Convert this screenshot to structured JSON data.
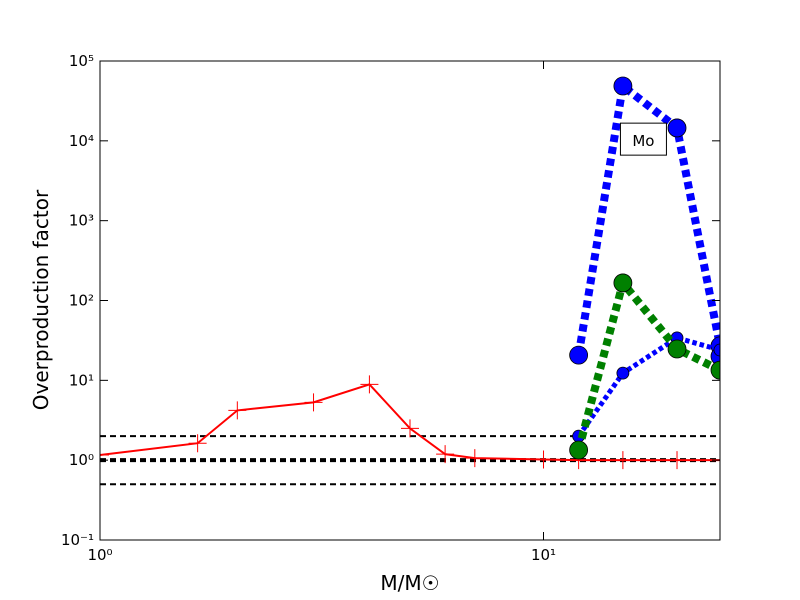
{
  "chart_data": {
    "type": "line",
    "xlabel": "M/M☉",
    "ylabel": "Overproduction factor",
    "xscale": "log",
    "yscale": "log",
    "xlim": [
      1,
      25
    ],
    "ylim": [
      0.1,
      100000
    ],
    "xticks": [
      {
        "value": 1,
        "label": "10⁰"
      },
      {
        "value": 10,
        "label": "10¹"
      }
    ],
    "yticks": [
      {
        "value": 0.1,
        "label": "10⁻¹"
      },
      {
        "value": 1,
        "label": "10⁰"
      },
      {
        "value": 10,
        "label": "10¹"
      },
      {
        "value": 100,
        "label": "10²"
      },
      {
        "value": 1000,
        "label": "10³"
      },
      {
        "value": 10000,
        "label": "10⁴"
      },
      {
        "value": 100000,
        "label": "10⁵"
      }
    ],
    "hlines": [
      {
        "value": 2,
        "width": 2
      },
      {
        "value": 1,
        "width": 4
      },
      {
        "value": 0.5,
        "width": 2
      }
    ],
    "annotation": {
      "text": "Mo",
      "x": 16.8,
      "y": 10500
    },
    "series": [
      {
        "color": "#ff0000",
        "linestyle": "solid",
        "width": 2,
        "marker": "plus",
        "markersize": 9,
        "x": [
          1,
          1.66,
          2.04,
          3.03,
          4.05,
          5.0,
          6.0,
          7.0,
          10,
          12,
          15.1,
          20,
          25
        ],
        "values": [
          1.16,
          1.63,
          4.2,
          5.3,
          8.9,
          2.5,
          1.19,
          1.06,
          1.02,
          1.0,
          1.0,
          1.0,
          1.0
        ]
      },
      {
        "color": "#0000ff",
        "linestyle": "dotted",
        "width": 8,
        "marker": "circle",
        "markersize": 9,
        "x": [
          12,
          15.1,
          20,
          25,
          25
        ],
        "values": [
          20.7,
          48600,
          14500,
          27,
          20
        ]
      },
      {
        "color": "#0000ff",
        "linestyle": "dotted",
        "width": 5,
        "marker": "circle",
        "markersize": 6,
        "x": [
          12,
          15.1,
          20,
          25
        ],
        "values": [
          2.0,
          12.3,
          34,
          24
        ]
      },
      {
        "color": "#008000",
        "linestyle": "dotted",
        "width": 8,
        "marker": "circle",
        "markersize": 9,
        "x": [
          12,
          15.1,
          20,
          25
        ],
        "values": [
          1.34,
          166,
          24.7,
          13.4
        ]
      }
    ]
  }
}
